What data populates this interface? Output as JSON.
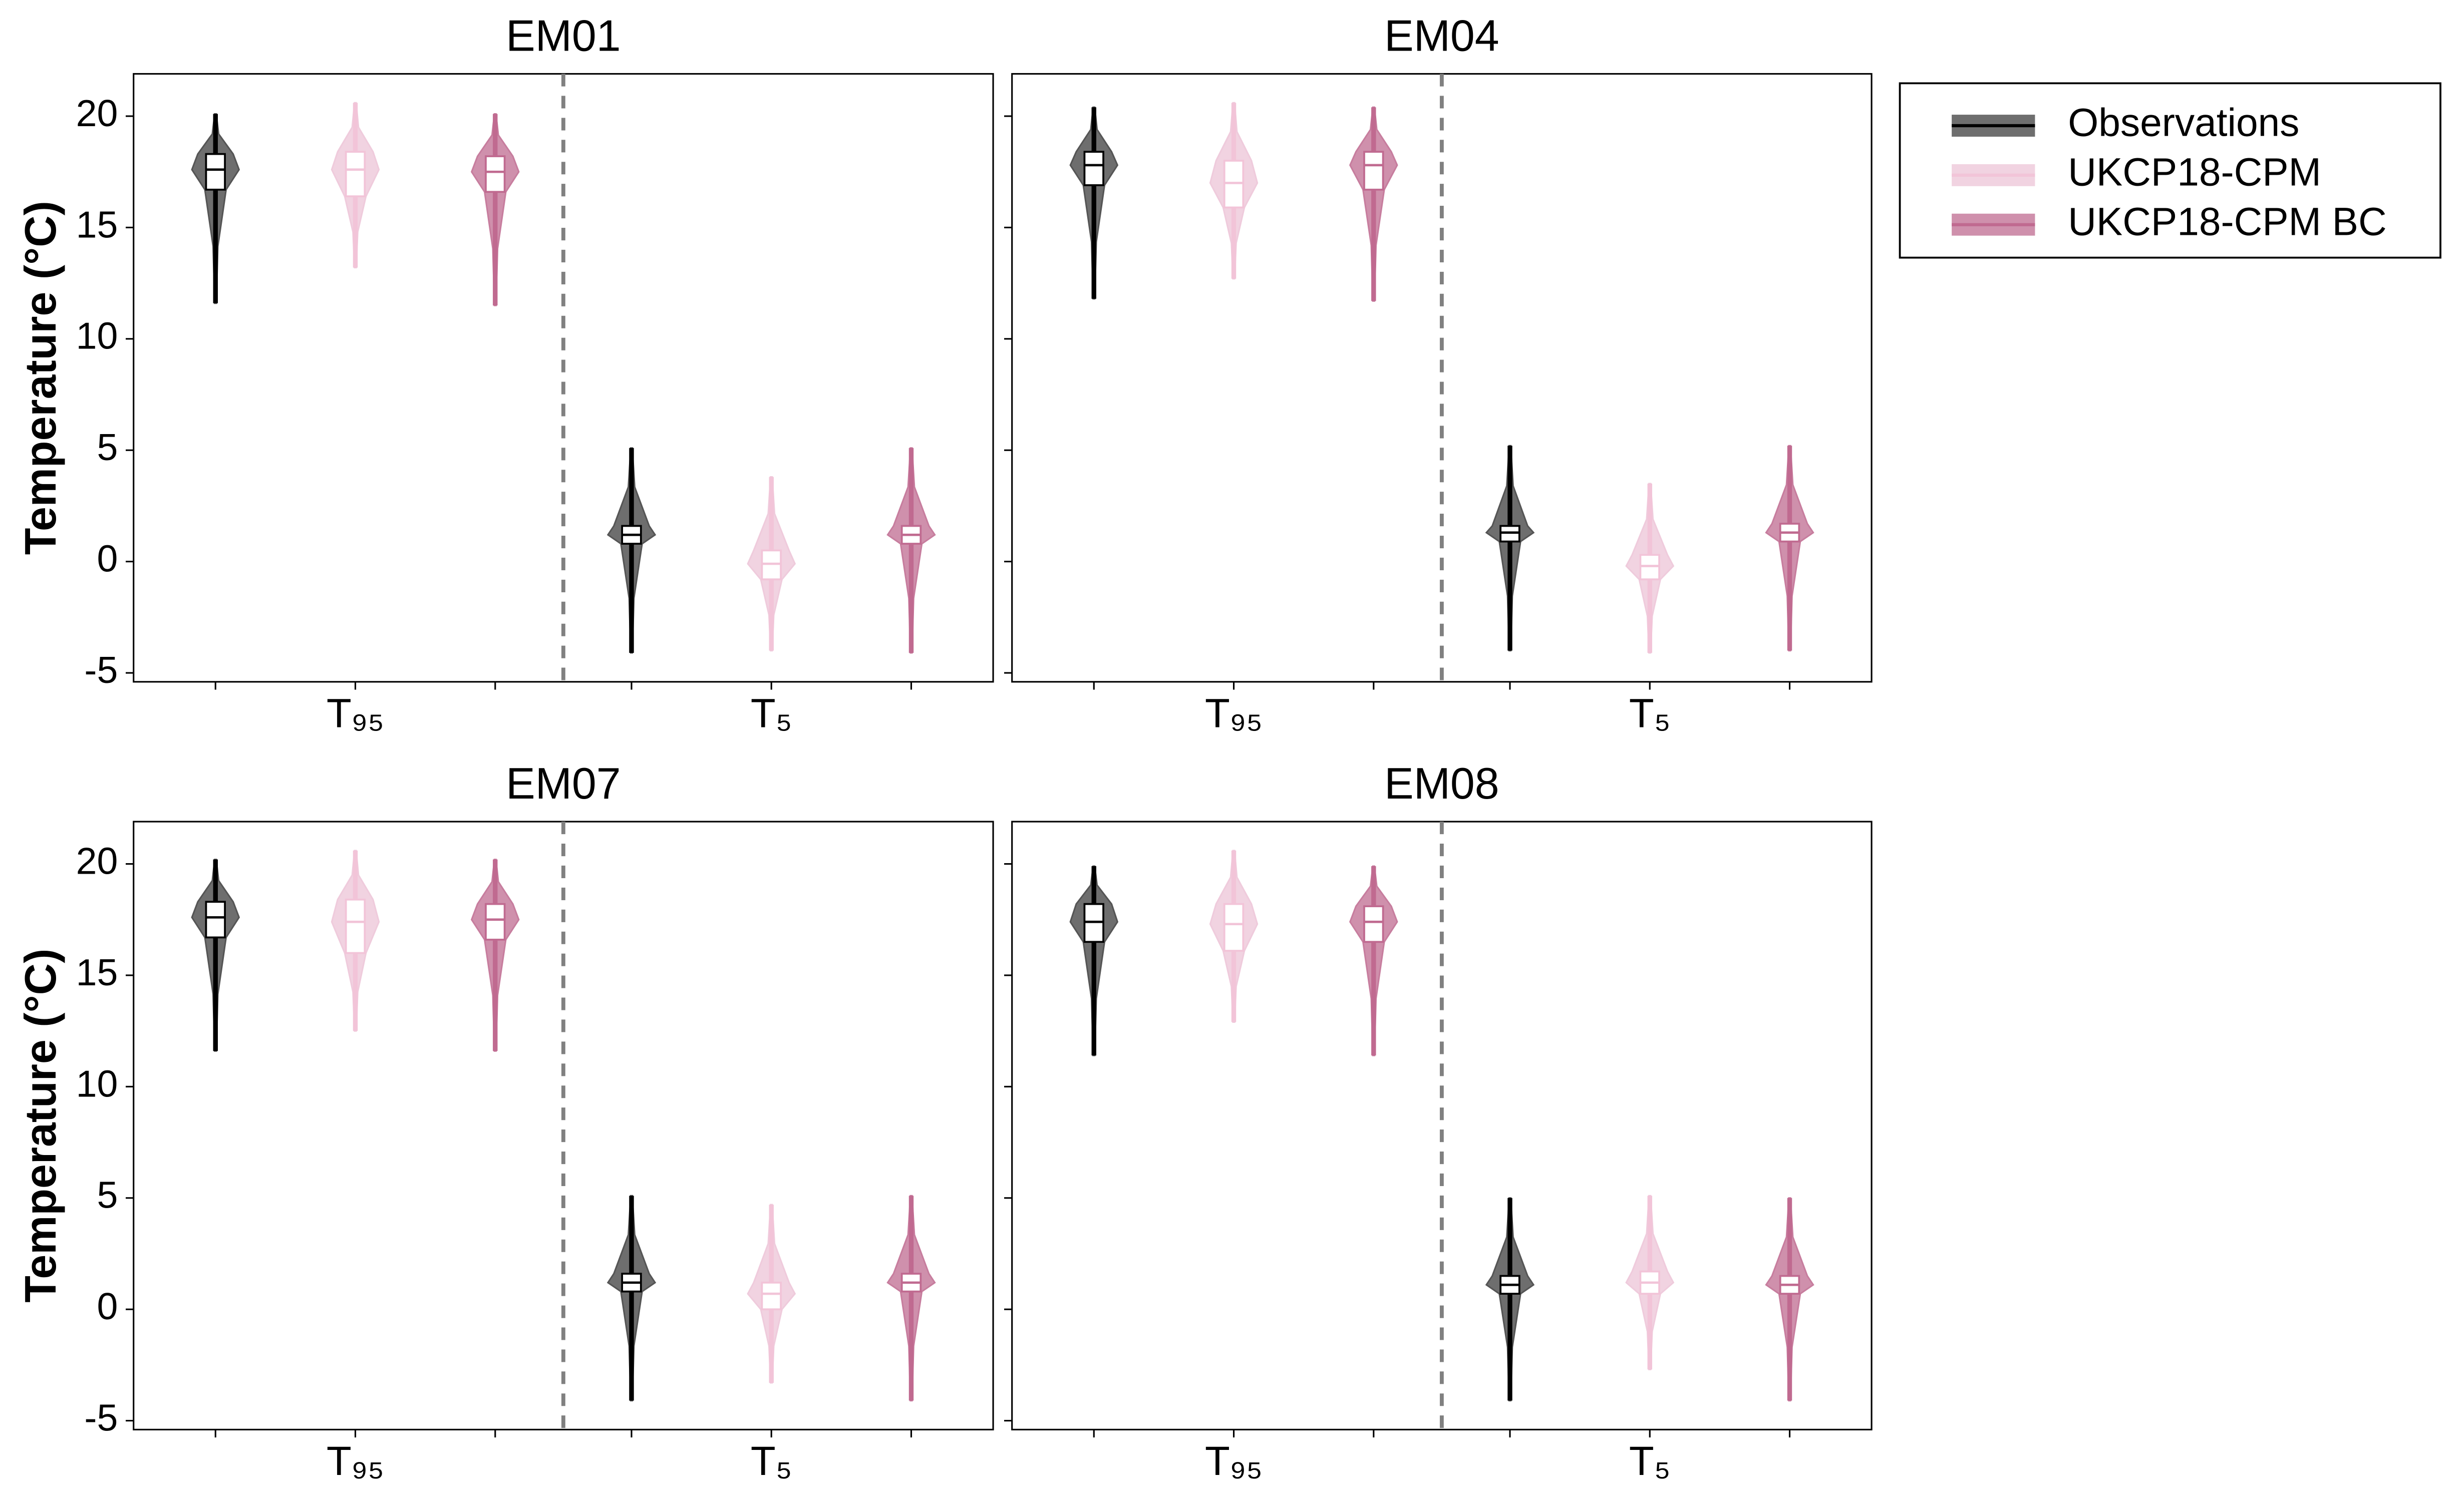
{
  "chart_data": {
    "type": "violin",
    "ylabel": "Temperature (°C)",
    "categories": [
      "T₉₅",
      "T₅"
    ],
    "ylim": [
      -5.4,
      21.9
    ],
    "yticks": [
      -5,
      0,
      5,
      10,
      15,
      20
    ],
    "series": [
      {
        "name": "Observations",
        "color": "#555555",
        "box_stroke": "#000000"
      },
      {
        "name": "UKCP18-CPM",
        "color": "#efcbdc",
        "box_stroke": "#f2c4d8"
      },
      {
        "name": "UKCP18-CPM BC",
        "color": "#c77d9e",
        "box_stroke": "#c06a90"
      }
    ],
    "panels": [
      {
        "title": "EM01",
        "values": [
          [
            {
              "min": 11.6,
              "q1": 16.7,
              "median": 17.6,
              "q3": 18.3,
              "max": 20.1
            },
            {
              "min": -4.1,
              "q1": 0.8,
              "median": 1.2,
              "q3": 1.6,
              "max": 5.1
            }
          ],
          [
            {
              "min": 13.2,
              "q1": 16.4,
              "median": 17.6,
              "q3": 18.4,
              "max": 20.6
            },
            {
              "min": -4.0,
              "q1": -0.8,
              "median": -0.1,
              "q3": 0.5,
              "max": 3.8
            }
          ],
          [
            {
              "min": 11.5,
              "q1": 16.6,
              "median": 17.5,
              "q3": 18.2,
              "max": 20.1
            },
            {
              "min": -4.1,
              "q1": 0.8,
              "median": 1.2,
              "q3": 1.6,
              "max": 5.1
            }
          ]
        ]
      },
      {
        "title": "EM04",
        "values": [
          [
            {
              "min": 11.8,
              "q1": 16.9,
              "median": 17.8,
              "q3": 18.4,
              "max": 20.4
            },
            {
              "min": -4.0,
              "q1": 0.9,
              "median": 1.3,
              "q3": 1.6,
              "max": 5.2
            }
          ],
          [
            {
              "min": 12.7,
              "q1": 15.9,
              "median": 17.0,
              "q3": 18.0,
              "max": 20.6
            },
            {
              "min": -4.1,
              "q1": -0.8,
              "median": -0.2,
              "q3": 0.3,
              "max": 3.5
            }
          ],
          [
            {
              "min": 11.7,
              "q1": 16.7,
              "median": 17.8,
              "q3": 18.4,
              "max": 20.4
            },
            {
              "min": -4.0,
              "q1": 0.9,
              "median": 1.3,
              "q3": 1.7,
              "max": 5.2
            }
          ]
        ]
      },
      {
        "title": "EM07",
        "values": [
          [
            {
              "min": 11.6,
              "q1": 16.7,
              "median": 17.6,
              "q3": 18.3,
              "max": 20.2
            },
            {
              "min": -4.1,
              "q1": 0.8,
              "median": 1.2,
              "q3": 1.6,
              "max": 5.1
            }
          ],
          [
            {
              "min": 12.5,
              "q1": 16.0,
              "median": 17.4,
              "q3": 18.4,
              "max": 20.6
            },
            {
              "min": -3.3,
              "q1": 0.0,
              "median": 0.7,
              "q3": 1.2,
              "max": 4.7
            }
          ],
          [
            {
              "min": 11.6,
              "q1": 16.6,
              "median": 17.5,
              "q3": 18.2,
              "max": 20.2
            },
            {
              "min": -4.1,
              "q1": 0.8,
              "median": 1.2,
              "q3": 1.6,
              "max": 5.1
            }
          ]
        ]
      },
      {
        "title": "EM08",
        "values": [
          [
            {
              "min": 11.4,
              "q1": 16.5,
              "median": 17.4,
              "q3": 18.2,
              "max": 19.9
            },
            {
              "min": -4.1,
              "q1": 0.7,
              "median": 1.1,
              "q3": 1.5,
              "max": 5.0
            }
          ],
          [
            {
              "min": 12.9,
              "q1": 16.1,
              "median": 17.3,
              "q3": 18.2,
              "max": 20.6
            },
            {
              "min": -2.7,
              "q1": 0.7,
              "median": 1.2,
              "q3": 1.7,
              "max": 5.1
            }
          ],
          [
            {
              "min": 11.4,
              "q1": 16.5,
              "median": 17.4,
              "q3": 18.1,
              "max": 19.9
            },
            {
              "min": -4.1,
              "q1": 0.7,
              "median": 1.1,
              "q3": 1.5,
              "max": 5.0
            }
          ]
        ]
      }
    ]
  }
}
